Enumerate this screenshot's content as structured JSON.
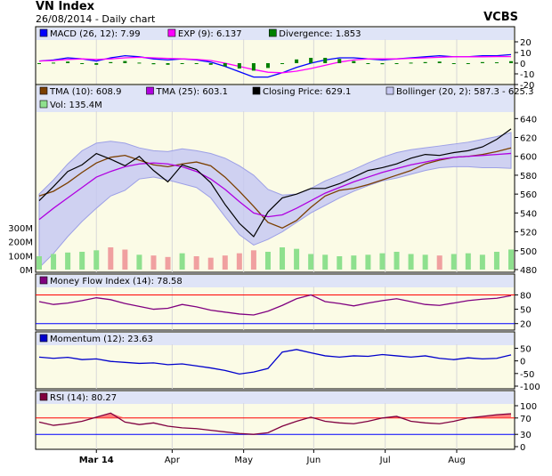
{
  "header": {
    "title": "VN Index",
    "subtitle": "26/08/2014 - Daily chart",
    "broker": "VCBS"
  },
  "colors": {
    "panel_bg": "#fbfbe6",
    "legend_bg": "#dfe4f7",
    "macd": "#0000ff",
    "exp": "#ff00ff",
    "divergence": "#008000",
    "tma10": "#7b3f00",
    "tma25": "#b000e0",
    "close": "#000000",
    "bollinger_fill": "#c7c9f2",
    "bollinger_line": "#9da0e6",
    "vol_up": "#8ee08e",
    "vol_down": "#f0a0a0",
    "mfi": "#800080",
    "momentum": "#0000cc",
    "rsi": "#800040",
    "rsi_fill": "#ff6060",
    "ref_red": "#ff0000",
    "ref_blue": "#0000ff"
  },
  "chart_data": [
    {
      "type": "line",
      "panel": "macd",
      "series": [
        {
          "name": "MACD (26, 12): 7.99",
          "color_key": "macd",
          "values": [
            2,
            3,
            5,
            4,
            2,
            5,
            7,
            6,
            4,
            3,
            4,
            3,
            1,
            -3,
            -8,
            -13,
            -13,
            -9,
            -4,
            0,
            3,
            5,
            5,
            4,
            3,
            4,
            5,
            6,
            7,
            6,
            6,
            7,
            7,
            8
          ]
        },
        {
          "name": "EXP (9): 6.137",
          "color_key": "exp",
          "values": [
            2,
            2.5,
            3.5,
            4,
            3.5,
            4,
            5,
            5.5,
            5,
            4.5,
            4,
            3.5,
            2.5,
            0,
            -3,
            -6,
            -8.5,
            -9,
            -7.5,
            -5,
            -2,
            1,
            3,
            4,
            4,
            4,
            4.5,
            5,
            5.5,
            6,
            6,
            6,
            6.2,
            6.137
          ]
        },
        {
          "name": "Divergence: 1.853",
          "color_key": "divergence",
          "style": "bars",
          "values": [
            0,
            0.5,
            1.5,
            0,
            -1.5,
            1,
            2,
            0.5,
            -1,
            -1.5,
            0,
            -0.5,
            -1.5,
            -3,
            -5,
            -7,
            -4.5,
            0,
            3.5,
            5,
            5,
            4,
            2,
            0,
            -1,
            0,
            0.5,
            1,
            1.5,
            0,
            0,
            1,
            0.8,
            1.853
          ]
        }
      ],
      "y_ticks": [
        20,
        10,
        0,
        -10,
        -20
      ],
      "ylim": [
        -20,
        20
      ]
    },
    {
      "type": "line",
      "panel": "price",
      "series": [
        {
          "name": "TMA (10): 608.9",
          "color_key": "tma10",
          "values": [
            558,
            563,
            572,
            583,
            593,
            599,
            601,
            596,
            591,
            589,
            592,
            594,
            590,
            578,
            563,
            547,
            530,
            524,
            532,
            546,
            558,
            564,
            566,
            570,
            575,
            580,
            585,
            592,
            596,
            599,
            600,
            602,
            605,
            608.9
          ]
        },
        {
          "name": "TMA (25): 603.1",
          "color_key": "tma25",
          "values": [
            533,
            545,
            556,
            567,
            578,
            584,
            589,
            592,
            593,
            592,
            589,
            584,
            576,
            565,
            552,
            540,
            536,
            538,
            545,
            553,
            561,
            567,
            573,
            578,
            583,
            587,
            591,
            594,
            597,
            599,
            600,
            601,
            602,
            603.1
          ]
        },
        {
          "name": "Closing Price: 629.1",
          "color_key": "close",
          "values": [
            553,
            568,
            584,
            591,
            603,
            597,
            590,
            600,
            585,
            573,
            591,
            586,
            572,
            549,
            529,
            515,
            541,
            556,
            560,
            566,
            566,
            571,
            578,
            585,
            588,
            592,
            598,
            602,
            601,
            604,
            606,
            610,
            618,
            629.1
          ]
        },
        {
          "name": "Bollinger (20, 2): 587.3 - 625.3",
          "color_key": "bollinger_line",
          "upper": [
            560,
            575,
            592,
            606,
            614,
            616,
            614,
            609,
            606,
            605,
            608,
            606,
            603,
            598,
            590,
            580,
            565,
            559,
            560,
            566,
            574,
            580,
            586,
            593,
            599,
            604,
            607,
            609,
            611,
            613,
            615,
            618,
            621,
            625.3
          ],
          "lower": [
            482,
            497,
            515,
            531,
            545,
            558,
            564,
            576,
            578,
            575,
            571,
            567,
            556,
            536,
            517,
            506,
            512,
            520,
            530,
            540,
            548,
            556,
            563,
            569,
            574,
            577,
            581,
            585,
            588,
            589,
            589,
            588,
            588,
            587.3
          ]
        },
        {
          "name": "Vol: 135.4M",
          "color_key": "vol_up",
          "style": "volume_bars",
          "values": [
            90,
            105,
            115,
            120,
            130,
            150,
            135,
            100,
            95,
            85,
            110,
            90,
            80,
            95,
            110,
            130,
            120,
            150,
            140,
            105,
            100,
            90,
            95,
            100,
            110,
            120,
            105,
            100,
            95,
            105,
            110,
            100,
            120,
            135.4
          ]
        }
      ],
      "y_ticks": [
        640,
        620,
        600,
        580,
        560,
        540,
        520,
        500,
        480
      ],
      "ylim": [
        480,
        645
      ],
      "volume_ticks": [
        "300M",
        "200M",
        "100M",
        "0M"
      ],
      "volume_max": 330
    },
    {
      "type": "line",
      "panel": "mfi",
      "series": [
        {
          "name": "Money Flow Index (14): 78.58",
          "color_key": "mfi",
          "values": [
            66,
            60,
            63,
            68,
            74,
            70,
            62,
            56,
            50,
            52,
            60,
            55,
            48,
            44,
            40,
            38,
            46,
            58,
            72,
            80,
            66,
            62,
            57,
            63,
            68,
            72,
            66,
            60,
            58,
            63,
            68,
            71,
            73,
            78.58
          ]
        }
      ],
      "y_ticks": [
        80,
        50,
        20
      ],
      "ylim": [
        12,
        92
      ]
    },
    {
      "type": "line",
      "panel": "momentum",
      "series": [
        {
          "name": "Momentum (12): 23.63",
          "color_key": "momentum",
          "values": [
            15,
            10,
            14,
            5,
            8,
            -2,
            -6,
            -10,
            -8,
            -15,
            -12,
            -20,
            -28,
            -38,
            -52,
            -44,
            -30,
            35,
            45,
            32,
            20,
            15,
            20,
            18,
            25,
            20,
            15,
            20,
            10,
            5,
            12,
            8,
            10,
            23.63
          ]
        }
      ],
      "y_ticks": [
        50,
        0,
        -50,
        -100
      ],
      "ylim": [
        -100,
        55
      ]
    },
    {
      "type": "line",
      "panel": "rsi",
      "series": [
        {
          "name": "RSI (14): 80.27",
          "color_key": "rsi",
          "values": [
            60,
            52,
            56,
            62,
            72,
            82,
            60,
            54,
            58,
            50,
            46,
            44,
            40,
            36,
            32,
            30,
            34,
            50,
            62,
            72,
            62,
            58,
            56,
            62,
            70,
            74,
            62,
            58,
            56,
            62,
            70,
            74,
            78,
            80.27
          ]
        }
      ],
      "y_ticks": [
        100,
        70,
        30,
        0
      ],
      "ylim": [
        0,
        100
      ]
    }
  ],
  "x_axis": {
    "labels": [
      "Mar 14",
      "Apr",
      "May",
      "Jun",
      "Jul",
      "Aug"
    ],
    "label_index": [
      4.0,
      9.3,
      14.3,
      19.2,
      24.2,
      29.2
    ]
  },
  "reference_lines": {
    "mfi": [
      80,
      20
    ],
    "rsi": [
      70,
      30
    ]
  }
}
